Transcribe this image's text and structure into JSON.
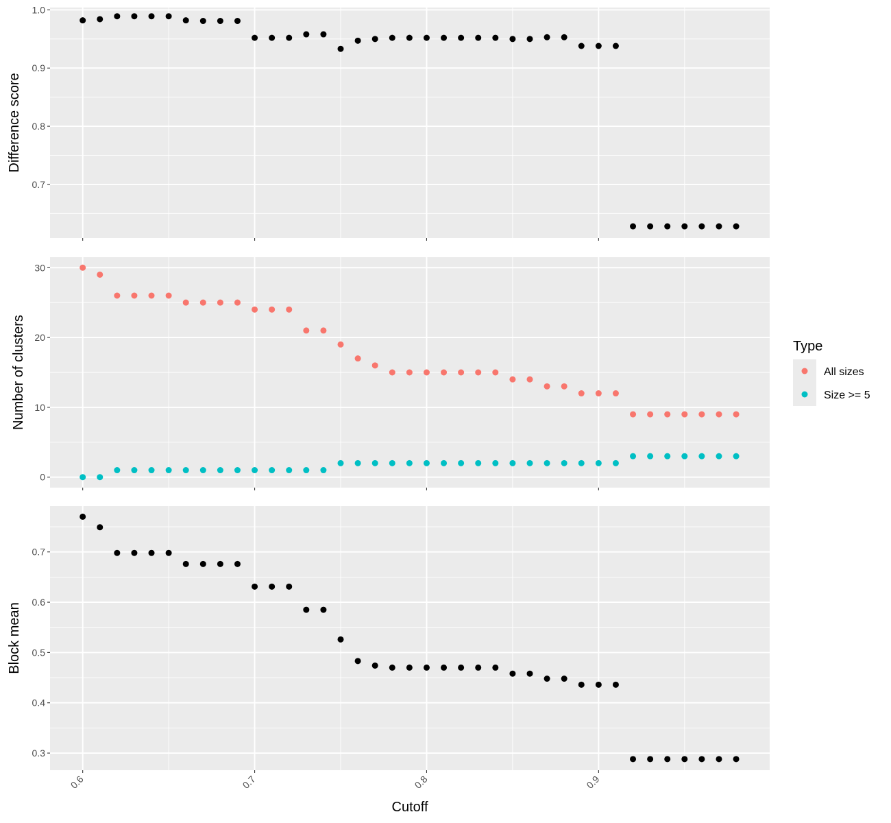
{
  "chart_data": [
    {
      "type": "scatter",
      "ylabel": "Difference score",
      "xlim": [
        0.581,
        0.9995
      ],
      "ylim": [
        0.608,
        1.004
      ],
      "yticks": [
        0.7,
        0.8,
        0.9,
        1.0
      ],
      "yticks_labels": [
        "0.7",
        "0.8",
        "0.9",
        "1.0"
      ],
      "grid": true,
      "series": [
        {
          "color": "#000000",
          "x": [
            0.6,
            0.61,
            0.62,
            0.63,
            0.64,
            0.65,
            0.66,
            0.67,
            0.68,
            0.69,
            0.7,
            0.71,
            0.72,
            0.73,
            0.74,
            0.75,
            0.76,
            0.77,
            0.78,
            0.79,
            0.8,
            0.81,
            0.82,
            0.83,
            0.84,
            0.85,
            0.86,
            0.87,
            0.88,
            0.89,
            0.9,
            0.91,
            0.92,
            0.93,
            0.94,
            0.95,
            0.96,
            0.97,
            0.98
          ],
          "y": [
            0.982,
            0.984,
            0.989,
            0.989,
            0.989,
            0.989,
            0.982,
            0.981,
            0.981,
            0.981,
            0.952,
            0.952,
            0.952,
            0.958,
            0.958,
            0.933,
            0.947,
            0.95,
            0.952,
            0.952,
            0.952,
            0.952,
            0.952,
            0.952,
            0.952,
            0.95,
            0.95,
            0.953,
            0.953,
            0.938,
            0.938,
            0.938,
            0.628,
            0.628,
            0.628,
            0.628,
            0.628,
            0.628,
            0.628
          ]
        }
      ]
    },
    {
      "type": "scatter",
      "ylabel": "Number of clusters",
      "xlim": [
        0.581,
        0.9995
      ],
      "ylim": [
        -1.5,
        31.5
      ],
      "yticks": [
        0,
        10,
        20,
        30
      ],
      "yticks_labels": [
        "0",
        "10",
        "20",
        "30"
      ],
      "grid": true,
      "legend": {
        "title": "Type",
        "position": "right"
      },
      "series": [
        {
          "name": "All sizes",
          "color": "#F8766D",
          "x": [
            0.6,
            0.61,
            0.62,
            0.63,
            0.64,
            0.65,
            0.66,
            0.67,
            0.68,
            0.69,
            0.7,
            0.71,
            0.72,
            0.73,
            0.74,
            0.75,
            0.76,
            0.77,
            0.78,
            0.79,
            0.8,
            0.81,
            0.82,
            0.83,
            0.84,
            0.85,
            0.86,
            0.87,
            0.88,
            0.89,
            0.9,
            0.91,
            0.92,
            0.93,
            0.94,
            0.95,
            0.96,
            0.97,
            0.98
          ],
          "y": [
            30,
            29,
            26,
            26,
            26,
            26,
            25,
            25,
            25,
            25,
            24,
            24,
            24,
            21,
            21,
            19,
            17,
            16,
            15,
            15,
            15,
            15,
            15,
            15,
            15,
            14,
            14,
            13,
            13,
            12,
            12,
            12,
            9,
            9,
            9,
            9,
            9,
            9,
            9
          ]
        },
        {
          "name": "Size >= 5",
          "color": "#00BFC4",
          "x": [
            0.6,
            0.61,
            0.62,
            0.63,
            0.64,
            0.65,
            0.66,
            0.67,
            0.68,
            0.69,
            0.7,
            0.71,
            0.72,
            0.73,
            0.74,
            0.75,
            0.76,
            0.77,
            0.78,
            0.79,
            0.8,
            0.81,
            0.82,
            0.83,
            0.84,
            0.85,
            0.86,
            0.87,
            0.88,
            0.89,
            0.9,
            0.91,
            0.92,
            0.93,
            0.94,
            0.95,
            0.96,
            0.97,
            0.98
          ],
          "y": [
            0,
            0,
            1,
            1,
            1,
            1,
            1,
            1,
            1,
            1,
            1,
            1,
            1,
            1,
            1,
            2,
            2,
            2,
            2,
            2,
            2,
            2,
            2,
            2,
            2,
            2,
            2,
            2,
            2,
            2,
            2,
            2,
            3,
            3,
            3,
            3,
            3,
            3,
            3
          ]
        }
      ]
    },
    {
      "type": "scatter",
      "ylabel": "Block mean",
      "xlabel": "Cutoff",
      "xlim": [
        0.581,
        0.9995
      ],
      "ylim": [
        0.266,
        0.791
      ],
      "yticks": [
        0.3,
        0.4,
        0.5,
        0.6,
        0.7
      ],
      "yticks_labels": [
        "0.3",
        "0.4",
        "0.5",
        "0.6",
        "0.7"
      ],
      "xticks": [
        0.6,
        0.7,
        0.8,
        0.9
      ],
      "xticks_labels": [
        "0.6",
        "0.7",
        "0.8",
        "0.9"
      ],
      "grid": true,
      "series": [
        {
          "color": "#000000",
          "x": [
            0.6,
            0.61,
            0.62,
            0.63,
            0.64,
            0.65,
            0.66,
            0.67,
            0.68,
            0.69,
            0.7,
            0.71,
            0.72,
            0.73,
            0.74,
            0.75,
            0.76,
            0.77,
            0.78,
            0.79,
            0.8,
            0.81,
            0.82,
            0.83,
            0.84,
            0.85,
            0.86,
            0.87,
            0.88,
            0.89,
            0.9,
            0.91,
            0.92,
            0.93,
            0.94,
            0.95,
            0.96,
            0.97,
            0.98
          ],
          "y": [
            0.77,
            0.749,
            0.698,
            0.698,
            0.698,
            0.698,
            0.676,
            0.676,
            0.676,
            0.676,
            0.631,
            0.631,
            0.631,
            0.585,
            0.585,
            0.526,
            0.483,
            0.474,
            0.47,
            0.47,
            0.47,
            0.47,
            0.47,
            0.47,
            0.47,
            0.458,
            0.458,
            0.448,
            0.448,
            0.436,
            0.436,
            0.436,
            0.288,
            0.288,
            0.288,
            0.288,
            0.288,
            0.288,
            0.288
          ]
        }
      ]
    }
  ]
}
